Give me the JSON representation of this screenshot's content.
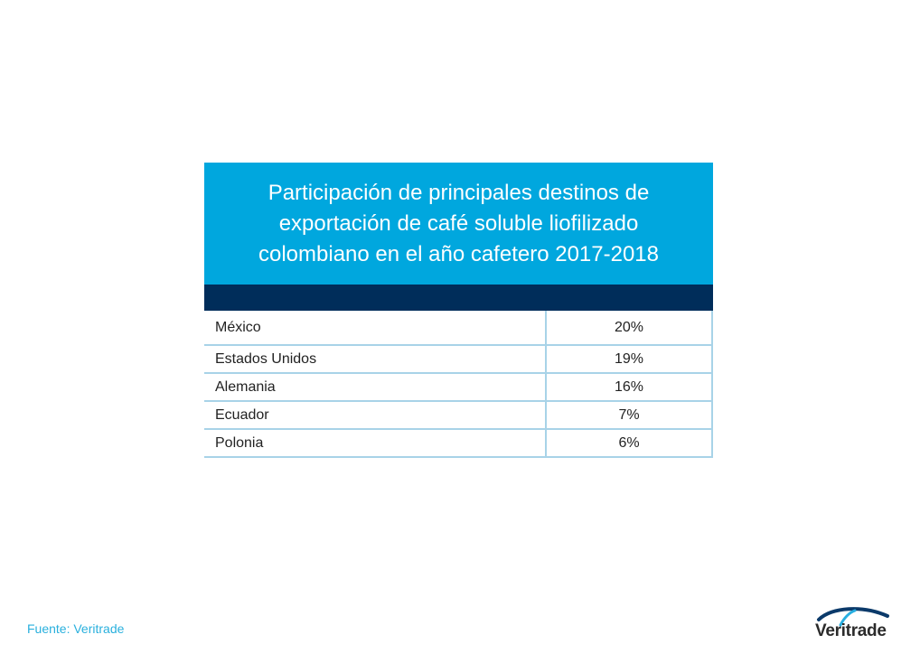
{
  "chart_data": {
    "type": "table",
    "title": "Participación de principales destinos de exportación de café soluble liofilizado colombiano en el año cafetero 2017-2018",
    "rows": [
      {
        "country": "México",
        "value": "20%"
      },
      {
        "country": "Estados Unidos",
        "value": "19%"
      },
      {
        "country": "Alemania",
        "value": "16%"
      },
      {
        "country": "Ecuador",
        "value": "7%"
      },
      {
        "country": "Polonia",
        "value": "6%"
      }
    ],
    "colors": {
      "header": "#00a7de",
      "bar": "#002d5a",
      "grid": "#a8d3e8"
    }
  },
  "footer": {
    "source": "Fuente: Veritrade",
    "logo_text": "Veritrade"
  }
}
